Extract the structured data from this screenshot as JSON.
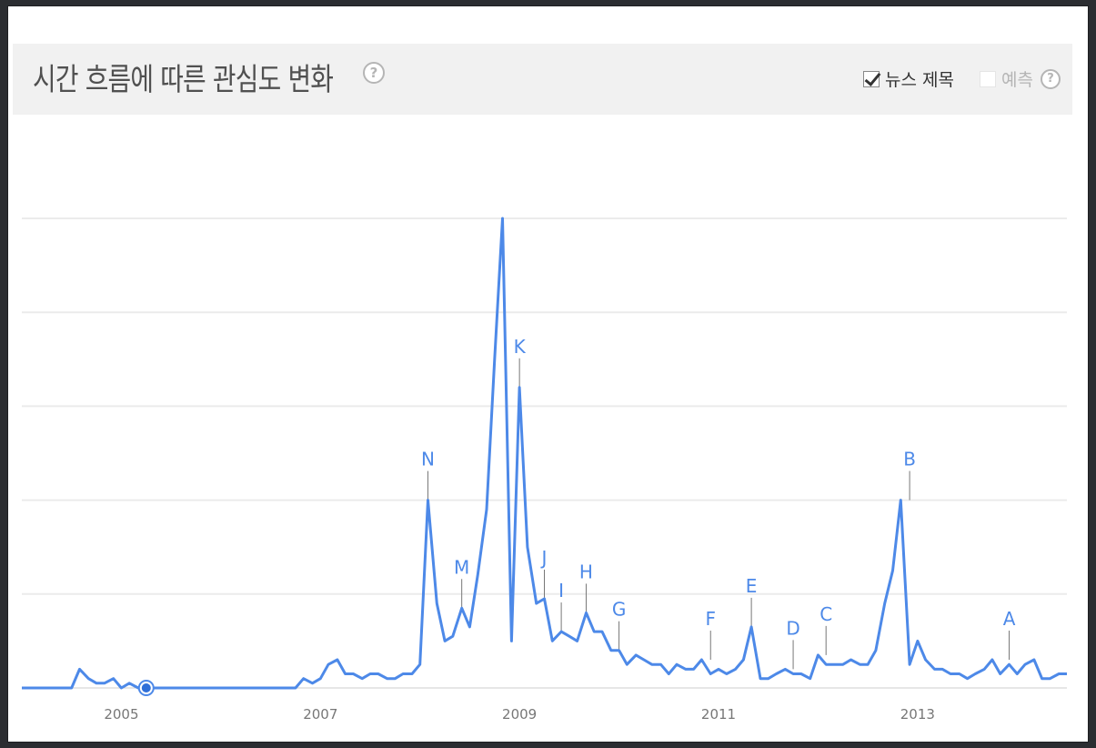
{
  "header": {
    "title": "시간 흐름에 따른 관심도 변화",
    "help_symbol": "?",
    "news_headlines_label": "뉴스 제목",
    "news_headlines_checked": true,
    "forecast_label": "예측",
    "forecast_checked": false
  },
  "chart_data": {
    "type": "line",
    "title": "",
    "xlabel": "",
    "ylabel": "",
    "x_tick_labels": [
      "2005",
      "2007",
      "2009",
      "2011",
      "2013"
    ],
    "x_range": [
      2004.0,
      2014.5
    ],
    "ylim": [
      0,
      100
    ],
    "grid": true,
    "series": [
      {
        "color": "#4d89e8",
        "x": [
          2004.0,
          2004.5,
          2004.58,
          2004.67,
          2004.75,
          2004.83,
          2004.92,
          2005.0,
          2005.08,
          2005.17,
          2005.25,
          2005.33,
          2005.5,
          2005.75,
          2006.0,
          2006.25,
          2006.5,
          2006.75,
          2006.83,
          2006.92,
          2007.0,
          2007.08,
          2007.17,
          2007.25,
          2007.33,
          2007.42,
          2007.5,
          2007.58,
          2007.67,
          2007.75,
          2007.83,
          2007.92,
          2008.0,
          2008.08,
          2008.17,
          2008.25,
          2008.33,
          2008.42,
          2008.5,
          2008.58,
          2008.67,
          2008.75,
          2008.83,
          2008.92,
          2009.0,
          2009.08,
          2009.17,
          2009.25,
          2009.33,
          2009.42,
          2009.5,
          2009.58,
          2009.67,
          2009.75,
          2009.83,
          2009.92,
          2010.0,
          2010.08,
          2010.17,
          2010.25,
          2010.33,
          2010.42,
          2010.5,
          2010.58,
          2010.67,
          2010.75,
          2010.83,
          2010.92,
          2011.0,
          2011.08,
          2011.17,
          2011.25,
          2011.33,
          2011.42,
          2011.5,
          2011.58,
          2011.67,
          2011.75,
          2011.83,
          2011.92,
          2012.0,
          2012.08,
          2012.17,
          2012.25,
          2012.33,
          2012.42,
          2012.5,
          2012.58,
          2012.67,
          2012.75,
          2012.83,
          2012.92,
          2013.0,
          2013.08,
          2013.17,
          2013.25,
          2013.33,
          2013.42,
          2013.5,
          2013.58,
          2013.67,
          2013.75,
          2013.83,
          2013.92,
          2014.0,
          2014.08,
          2014.17,
          2014.25,
          2014.33,
          2014.42,
          2014.5
        ],
        "values": [
          0,
          0,
          4,
          2,
          1,
          1,
          2,
          0,
          1,
          0,
          0,
          0,
          0,
          0,
          0,
          0,
          0,
          0,
          2,
          1,
          2,
          5,
          6,
          3,
          3,
          2,
          3,
          3,
          2,
          2,
          3,
          3,
          5,
          40,
          18,
          10,
          11,
          17,
          13,
          24,
          38,
          70,
          100,
          10,
          64,
          30,
          18,
          19,
          10,
          12,
          11,
          10,
          16,
          12,
          12,
          8,
          8,
          5,
          7,
          6,
          5,
          5,
          3,
          5,
          4,
          4,
          6,
          3,
          4,
          3,
          4,
          6,
          13,
          2,
          2,
          3,
          4,
          3,
          3,
          2,
          7,
          5,
          5,
          5,
          6,
          5,
          5,
          8,
          18,
          25,
          40,
          5,
          10,
          6,
          4,
          4,
          3,
          3,
          2,
          3,
          4,
          6,
          3,
          5,
          3,
          5,
          6,
          2,
          2,
          3,
          3
        ]
      }
    ],
    "annotations": [
      {
        "label": "N",
        "x": 2008.08,
        "y": 40
      },
      {
        "label": "M",
        "x": 2008.42,
        "y": 17
      },
      {
        "label": "K",
        "x": 2009.0,
        "y": 64
      },
      {
        "label": "J",
        "x": 2009.25,
        "y": 19
      },
      {
        "label": "I",
        "x": 2009.42,
        "y": 12
      },
      {
        "label": "H",
        "x": 2009.67,
        "y": 16
      },
      {
        "label": "G",
        "x": 2010.0,
        "y": 8
      },
      {
        "label": "F",
        "x": 2010.92,
        "y": 6
      },
      {
        "label": "E",
        "x": 2011.33,
        "y": 13
      },
      {
        "label": "D",
        "x": 2011.75,
        "y": 4
      },
      {
        "label": "C",
        "x": 2012.08,
        "y": 7
      },
      {
        "label": "B",
        "x": 2012.92,
        "y": 40
      },
      {
        "label": "A",
        "x": 2013.92,
        "y": 6
      }
    ],
    "marker": {
      "x": 2005.25,
      "y": 0
    }
  }
}
